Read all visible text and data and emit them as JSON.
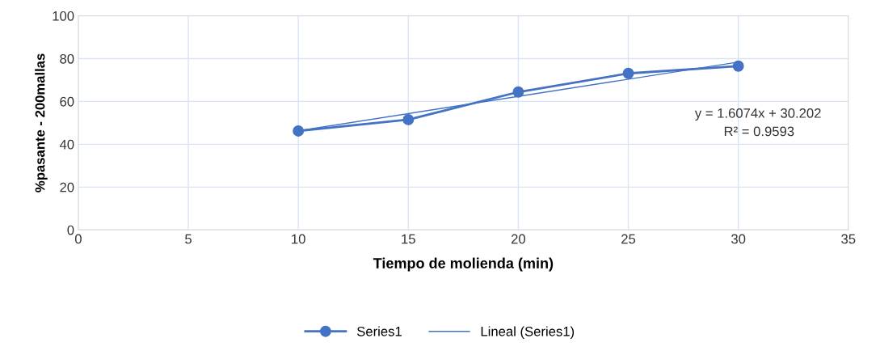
{
  "chart_data": {
    "type": "line",
    "xlabel": "Tiempo de molienda (min)",
    "ylabel": "%pasante - 200mallas",
    "xlim": [
      0,
      35
    ],
    "xticks": [
      0,
      5,
      10,
      15,
      20,
      25,
      30,
      35
    ],
    "ylim": [
      0,
      100
    ],
    "yticks": [
      0,
      20,
      40,
      60,
      80,
      100
    ],
    "grid": true,
    "legend": "bottom",
    "series": [
      {
        "name": "Series1",
        "color": "#4472c4",
        "x": [
          10,
          15,
          20,
          25,
          30
        ],
        "values": [
          46.2,
          51.5,
          64.4,
          73.1,
          76.5
        ],
        "marker": "circle"
      },
      {
        "name": "Lineal (Series1)",
        "color": "#4472c4",
        "x": [
          10,
          30
        ],
        "values": [
          46.3,
          78.4
        ],
        "marker": "none"
      }
    ],
    "annotations": [
      "y = 1.6074x + 30.202",
      "R² = 0.9593"
    ]
  }
}
